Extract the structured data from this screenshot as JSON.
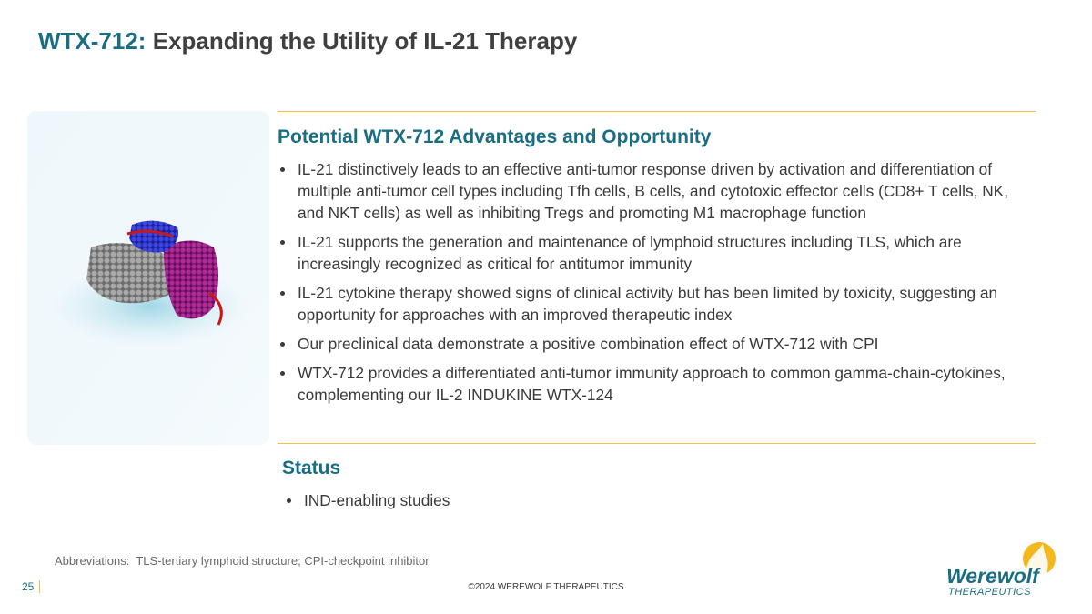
{
  "header": {
    "title_prefix": "WTX-712:",
    "title": "Expanding the Utility of IL-21 Therapy"
  },
  "sections": [
    {
      "heading": "Potential WTX-712 Advantages and Opportunity",
      "bullets": [
        "IL-21 distinctively leads to an effective anti-tumor response driven by activation and differentiation of multiple anti-tumor cell types including Tfh cells, B cells, and cytotoxic effector cells (CD8+ T cells, NK, and NKT cells) as well as inhibiting Tregs and promoting M1 macrophage function",
        "IL-21 supports the generation and maintenance of lymphoid structures including TLS, which are increasingly recognized as critical for antitumor immunity",
        "IL-21 cytokine therapy showed signs of clinical activity but has been limited by toxicity, suggesting an opportunity for approaches with an improved therapeutic index",
        "Our preclinical data demonstrate a positive combination effect of WTX-712 with CPI",
        "WTX-712 provides a differentiated anti-tumor immunity approach to common gamma-chain-cytokines, complementing our IL-2 INDUKINE WTX-124"
      ]
    },
    {
      "heading": "Status",
      "bullets": [
        "IND-enabling studies"
      ]
    }
  ],
  "footer": {
    "abbreviations": "Abbreviations:  TLS-tertiary lymphoid structure; CPI-checkpoint inhibitor",
    "page_number": "25",
    "copyright": "©2024 WEREWOLF THERAPEUTICS",
    "logo": {
      "name": "Werewolf",
      "tagline": "THERAPEUTICS"
    }
  }
}
